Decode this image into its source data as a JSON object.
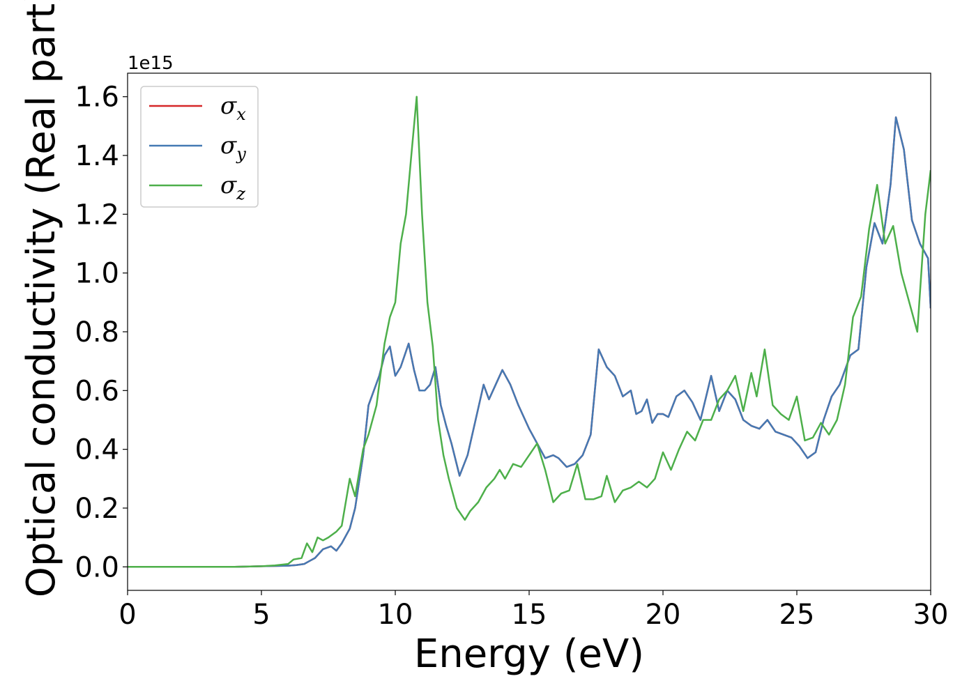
{
  "chart_data": {
    "type": "line",
    "xlabel": "Energy (eV)",
    "ylabel": "Optical conductivity (Real part)",
    "y_offset_label": "1e15",
    "xlim": [
      0,
      30
    ],
    "ylim": [
      -0.08,
      1.68
    ],
    "xticks": [
      0,
      5,
      10,
      15,
      20,
      25,
      30
    ],
    "xtick_labels": [
      "0",
      "5",
      "10",
      "15",
      "20",
      "25",
      "30"
    ],
    "yticks": [
      0.0,
      0.2,
      0.4,
      0.6,
      0.8,
      1.0,
      1.2,
      1.4,
      1.6
    ],
    "ytick_labels": [
      "0.0",
      "0.2",
      "0.4",
      "0.6",
      "0.8",
      "1.0",
      "1.2",
      "1.4",
      "1.6"
    ],
    "grid": false,
    "legend_position": "top-left",
    "series": [
      {
        "name": "σx",
        "symbol": "σ",
        "subscript": "x",
        "color": "#d62728",
        "x": [
          0,
          4,
          5,
          5.5,
          6,
          6.3,
          6.6,
          6.8,
          7,
          7.3,
          7.6,
          7.8,
          8,
          8.3,
          8.5,
          8.8,
          9,
          9.2,
          9.4,
          9.6,
          9.8,
          10,
          10.2,
          10.5,
          10.7,
          10.9,
          11.1,
          11.3,
          11.5,
          11.7,
          11.9,
          12.1,
          12.4,
          12.7,
          13,
          13.3,
          13.5,
          13.8,
          14,
          14.3,
          14.6,
          15,
          15.3,
          15.6,
          15.9,
          16.1,
          16.4,
          16.7,
          17,
          17.3,
          17.6,
          17.9,
          18.2,
          18.5,
          18.8,
          19,
          19.2,
          19.4,
          19.6,
          19.8,
          20,
          20.2,
          20.5,
          20.8,
          21.1,
          21.4,
          21.8,
          22.1,
          22.4,
          22.7,
          23,
          23.3,
          23.6,
          23.9,
          24.2,
          24.5,
          24.8,
          25.1,
          25.4,
          25.7,
          26,
          26.3,
          26.6,
          27,
          27.3,
          27.6,
          27.9,
          28.2,
          28.5,
          28.7,
          29,
          29.3,
          29.6,
          29.9,
          30
        ],
        "y": [
          0,
          0,
          0.002,
          0.003,
          0.004,
          0.006,
          0.01,
          0.02,
          0.03,
          0.06,
          0.07,
          0.055,
          0.08,
          0.13,
          0.2,
          0.38,
          0.55,
          0.6,
          0.65,
          0.72,
          0.75,
          0.65,
          0.68,
          0.76,
          0.67,
          0.6,
          0.6,
          0.62,
          0.68,
          0.55,
          0.48,
          0.42,
          0.31,
          0.38,
          0.5,
          0.62,
          0.57,
          0.63,
          0.67,
          0.62,
          0.55,
          0.47,
          0.42,
          0.37,
          0.38,
          0.37,
          0.34,
          0.35,
          0.38,
          0.45,
          0.74,
          0.68,
          0.65,
          0.58,
          0.6,
          0.52,
          0.53,
          0.57,
          0.49,
          0.52,
          0.52,
          0.51,
          0.58,
          0.6,
          0.56,
          0.5,
          0.65,
          0.53,
          0.6,
          0.57,
          0.5,
          0.48,
          0.47,
          0.5,
          0.46,
          0.45,
          0.44,
          0.41,
          0.37,
          0.39,
          0.5,
          0.58,
          0.62,
          0.72,
          0.74,
          1.02,
          1.17,
          1.1,
          1.3,
          1.53,
          1.42,
          1.18,
          1.1,
          1.05,
          0.88
        ]
      },
      {
        "name": "σy",
        "symbol": "σ",
        "subscript": "y",
        "color": "#4479b3",
        "x": [
          0,
          4,
          5,
          5.5,
          6,
          6.3,
          6.6,
          6.8,
          7,
          7.3,
          7.6,
          7.8,
          8,
          8.3,
          8.5,
          8.8,
          9,
          9.2,
          9.4,
          9.6,
          9.8,
          10,
          10.2,
          10.5,
          10.7,
          10.9,
          11.1,
          11.3,
          11.5,
          11.7,
          11.9,
          12.1,
          12.4,
          12.7,
          13,
          13.3,
          13.5,
          13.8,
          14,
          14.3,
          14.6,
          15,
          15.3,
          15.6,
          15.9,
          16.1,
          16.4,
          16.7,
          17,
          17.3,
          17.6,
          17.9,
          18.2,
          18.5,
          18.8,
          19,
          19.2,
          19.4,
          19.6,
          19.8,
          20,
          20.2,
          20.5,
          20.8,
          21.1,
          21.4,
          21.8,
          22.1,
          22.4,
          22.7,
          23,
          23.3,
          23.6,
          23.9,
          24.2,
          24.5,
          24.8,
          25.1,
          25.4,
          25.7,
          26,
          26.3,
          26.6,
          27,
          27.3,
          27.6,
          27.9,
          28.2,
          28.5,
          28.7,
          29,
          29.3,
          29.6,
          29.9,
          30
        ],
        "y": [
          0,
          0,
          0.002,
          0.003,
          0.004,
          0.006,
          0.01,
          0.02,
          0.03,
          0.06,
          0.07,
          0.055,
          0.08,
          0.13,
          0.2,
          0.38,
          0.55,
          0.6,
          0.65,
          0.72,
          0.75,
          0.65,
          0.68,
          0.76,
          0.67,
          0.6,
          0.6,
          0.62,
          0.68,
          0.55,
          0.48,
          0.42,
          0.31,
          0.38,
          0.5,
          0.62,
          0.57,
          0.63,
          0.67,
          0.62,
          0.55,
          0.47,
          0.42,
          0.37,
          0.38,
          0.37,
          0.34,
          0.35,
          0.38,
          0.45,
          0.74,
          0.68,
          0.65,
          0.58,
          0.6,
          0.52,
          0.53,
          0.57,
          0.49,
          0.52,
          0.52,
          0.51,
          0.58,
          0.6,
          0.56,
          0.5,
          0.65,
          0.53,
          0.6,
          0.57,
          0.5,
          0.48,
          0.47,
          0.5,
          0.46,
          0.45,
          0.44,
          0.41,
          0.37,
          0.39,
          0.5,
          0.58,
          0.62,
          0.72,
          0.74,
          1.02,
          1.17,
          1.1,
          1.3,
          1.53,
          1.42,
          1.18,
          1.1,
          1.05,
          0.88
        ]
      },
      {
        "name": "σz",
        "symbol": "σ",
        "subscript": "z",
        "color": "#4daf4a",
        "x": [
          0,
          4,
          5,
          5.5,
          6,
          6.2,
          6.5,
          6.7,
          6.9,
          7.1,
          7.3,
          7.5,
          7.8,
          8,
          8.3,
          8.5,
          8.8,
          9,
          9.3,
          9.6,
          9.8,
          10,
          10.2,
          10.4,
          10.6,
          10.8,
          11,
          11.2,
          11.4,
          11.6,
          11.8,
          12,
          12.3,
          12.6,
          12.8,
          13.1,
          13.4,
          13.7,
          13.9,
          14.1,
          14.4,
          14.7,
          15,
          15.3,
          15.6,
          15.9,
          16.2,
          16.5,
          16.8,
          17.1,
          17.4,
          17.7,
          17.9,
          18.2,
          18.5,
          18.8,
          19.1,
          19.4,
          19.7,
          20,
          20.3,
          20.6,
          20.9,
          21.2,
          21.5,
          21.8,
          22.1,
          22.4,
          22.7,
          23,
          23.3,
          23.5,
          23.8,
          24.1,
          24.4,
          24.7,
          25,
          25.3,
          25.6,
          25.9,
          26.2,
          26.5,
          26.8,
          27.1,
          27.4,
          27.7,
          28,
          28.3,
          28.6,
          28.9,
          29.2,
          29.5,
          29.8,
          30
        ],
        "y": [
          0,
          0,
          0.002,
          0.005,
          0.01,
          0.025,
          0.03,
          0.08,
          0.05,
          0.1,
          0.09,
          0.1,
          0.12,
          0.14,
          0.3,
          0.24,
          0.4,
          0.45,
          0.55,
          0.76,
          0.85,
          0.9,
          1.1,
          1.2,
          1.4,
          1.6,
          1.2,
          0.9,
          0.75,
          0.5,
          0.38,
          0.3,
          0.2,
          0.16,
          0.19,
          0.22,
          0.27,
          0.3,
          0.33,
          0.3,
          0.35,
          0.34,
          0.38,
          0.42,
          0.33,
          0.22,
          0.25,
          0.26,
          0.35,
          0.23,
          0.23,
          0.24,
          0.31,
          0.22,
          0.26,
          0.27,
          0.29,
          0.27,
          0.3,
          0.39,
          0.33,
          0.4,
          0.46,
          0.43,
          0.5,
          0.5,
          0.57,
          0.6,
          0.65,
          0.53,
          0.66,
          0.58,
          0.74,
          0.55,
          0.52,
          0.5,
          0.58,
          0.43,
          0.44,
          0.49,
          0.45,
          0.5,
          0.62,
          0.85,
          0.92,
          1.15,
          1.3,
          1.1,
          1.16,
          1.0,
          0.9,
          0.8,
          1.2,
          1.35
        ]
      }
    ]
  }
}
